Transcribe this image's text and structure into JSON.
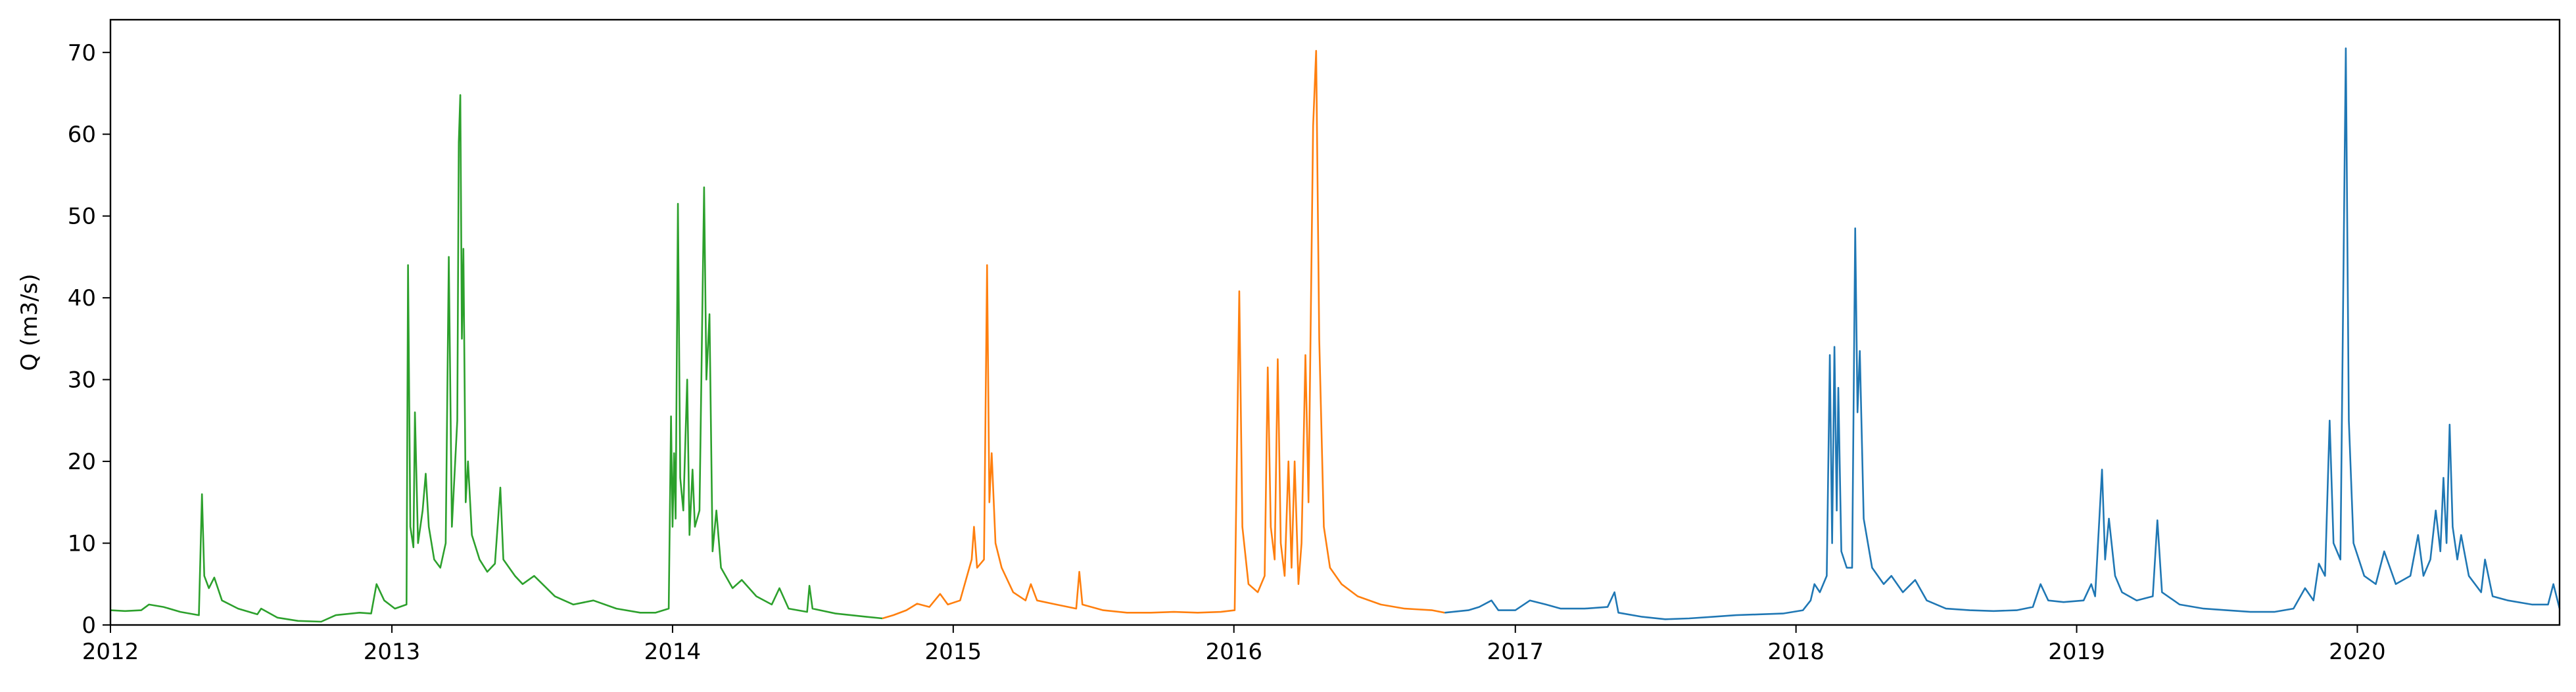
{
  "chart_data": {
    "type": "line",
    "title": "",
    "xlabel": "",
    "ylabel": "Q (m3/s)",
    "xlim": [
      "2012-01-01",
      "2020-09-20"
    ],
    "ylim": [
      0,
      74
    ],
    "x_ticks": [
      "2012",
      "2013",
      "2014",
      "2015",
      "2016",
      "2017",
      "2018",
      "2019",
      "2020"
    ],
    "y_ticks": [
      0,
      10,
      20,
      30,
      40,
      50,
      60,
      70
    ],
    "grid": false,
    "legend": "none",
    "series": [
      {
        "color": "#2ca02c",
        "points": [
          [
            "2012-01-01",
            1.8
          ],
          [
            "2012-01-20",
            1.7
          ],
          [
            "2012-02-10",
            1.8
          ],
          [
            "2012-02-20",
            2.5
          ],
          [
            "2012-03-10",
            2.2
          ],
          [
            "2012-04-01",
            1.6
          ],
          [
            "2012-04-25",
            1.2
          ],
          [
            "2012-04-29",
            16.0
          ],
          [
            "2012-05-02",
            6.0
          ],
          [
            "2012-05-08",
            4.5
          ],
          [
            "2012-05-15",
            5.8
          ],
          [
            "2012-05-25",
            3.0
          ],
          [
            "2012-06-15",
            2.0
          ],
          [
            "2012-07-10",
            1.3
          ],
          [
            "2012-07-15",
            2.0
          ],
          [
            "2012-08-05",
            0.9
          ],
          [
            "2012-09-01",
            0.5
          ],
          [
            "2012-10-01",
            0.4
          ],
          [
            "2012-10-20",
            1.2
          ],
          [
            "2012-11-20",
            1.5
          ],
          [
            "2012-12-05",
            1.4
          ],
          [
            "2012-12-12",
            5.0
          ],
          [
            "2012-12-22",
            3.0
          ],
          [
            "2013-01-05",
            2.0
          ],
          [
            "2013-01-20",
            2.5
          ],
          [
            "2013-01-22",
            44.0
          ],
          [
            "2013-01-25",
            12.0
          ],
          [
            "2013-01-29",
            9.5
          ],
          [
            "2013-01-31",
            26.0
          ],
          [
            "2013-02-04",
            10.0
          ],
          [
            "2013-02-10",
            14.0
          ],
          [
            "2013-02-14",
            18.5
          ],
          [
            "2013-02-18",
            12.0
          ],
          [
            "2013-02-25",
            8.0
          ],
          [
            "2013-03-05",
            7.0
          ],
          [
            "2013-03-12",
            10.0
          ],
          [
            "2013-03-16",
            45.0
          ],
          [
            "2013-03-20",
            12.0
          ],
          [
            "2013-03-27",
            25.0
          ],
          [
            "2013-03-29",
            59.0
          ],
          [
            "2013-03-31",
            64.8
          ],
          [
            "2013-04-02",
            35.0
          ],
          [
            "2013-04-04",
            46.0
          ],
          [
            "2013-04-07",
            15.0
          ],
          [
            "2013-04-10",
            20.0
          ],
          [
            "2013-04-15",
            11.0
          ],
          [
            "2013-04-25",
            8.0
          ],
          [
            "2013-05-05",
            6.5
          ],
          [
            "2013-05-15",
            7.5
          ],
          [
            "2013-05-22",
            16.8
          ],
          [
            "2013-05-26",
            8.0
          ],
          [
            "2013-06-10",
            6.0
          ],
          [
            "2013-06-20",
            5.0
          ],
          [
            "2013-07-05",
            6.0
          ],
          [
            "2013-08-01",
            3.5
          ],
          [
            "2013-08-25",
            2.5
          ],
          [
            "2013-09-20",
            3.0
          ],
          [
            "2013-10-20",
            2.0
          ],
          [
            "2013-11-20",
            1.5
          ],
          [
            "2013-12-10",
            1.5
          ],
          [
            "2013-12-27",
            2.0
          ],
          [
            "2013-12-30",
            25.5
          ],
          [
            "2014-01-01",
            12.0
          ],
          [
            "2014-01-03",
            21.0
          ],
          [
            "2014-01-05",
            13.0
          ],
          [
            "2014-01-08",
            51.5
          ],
          [
            "2014-01-11",
            18.0
          ],
          [
            "2014-01-15",
            14.0
          ],
          [
            "2014-01-20",
            30.0
          ],
          [
            "2014-01-23",
            11.0
          ],
          [
            "2014-01-27",
            19.0
          ],
          [
            "2014-01-30",
            12.0
          ],
          [
            "2014-02-05",
            14.0
          ],
          [
            "2014-02-11",
            53.5
          ],
          [
            "2014-02-14",
            30.0
          ],
          [
            "2014-02-18",
            38.0
          ],
          [
            "2014-02-22",
            9.0
          ],
          [
            "2014-02-27",
            14.0
          ],
          [
            "2014-03-05",
            7.0
          ],
          [
            "2014-03-20",
            4.5
          ],
          [
            "2014-04-01",
            5.5
          ],
          [
            "2014-04-20",
            3.5
          ],
          [
            "2014-05-10",
            2.5
          ],
          [
            "2014-05-20",
            4.5
          ],
          [
            "2014-06-01",
            2.0
          ],
          [
            "2014-06-25",
            1.6
          ],
          [
            "2014-06-28",
            4.8
          ],
          [
            "2014-07-02",
            2.0
          ],
          [
            "2014-08-01",
            1.4
          ],
          [
            "2014-09-10",
            1.0
          ],
          [
            "2014-10-01",
            0.8
          ]
        ]
      },
      {
        "color": "#ff7f0e",
        "points": [
          [
            "2014-10-01",
            0.8
          ],
          [
            "2014-10-15",
            1.2
          ],
          [
            "2014-11-01",
            1.8
          ],
          [
            "2014-11-15",
            2.6
          ],
          [
            "2014-12-01",
            2.2
          ],
          [
            "2014-12-15",
            3.8
          ],
          [
            "2014-12-25",
            2.5
          ],
          [
            "2015-01-10",
            3.0
          ],
          [
            "2015-01-25",
            8.0
          ],
          [
            "2015-01-28",
            12.0
          ],
          [
            "2015-02-01",
            7.0
          ],
          [
            "2015-02-10",
            8.0
          ],
          [
            "2015-02-14",
            44.0
          ],
          [
            "2015-02-17",
            15.0
          ],
          [
            "2015-02-20",
            21.0
          ],
          [
            "2015-02-25",
            10.0
          ],
          [
            "2015-03-05",
            7.0
          ],
          [
            "2015-03-20",
            4.0
          ],
          [
            "2015-04-05",
            3.0
          ],
          [
            "2015-04-12",
            5.0
          ],
          [
            "2015-04-20",
            3.0
          ],
          [
            "2015-05-15",
            2.5
          ],
          [
            "2015-06-10",
            2.0
          ],
          [
            "2015-06-14",
            6.5
          ],
          [
            "2015-06-18",
            2.5
          ],
          [
            "2015-07-15",
            1.8
          ],
          [
            "2015-08-15",
            1.5
          ],
          [
            "2015-09-15",
            1.5
          ],
          [
            "2015-10-15",
            1.6
          ],
          [
            "2015-11-15",
            1.5
          ],
          [
            "2015-12-15",
            1.6
          ],
          [
            "2016-01-02",
            1.8
          ],
          [
            "2016-01-08",
            40.8
          ],
          [
            "2016-01-12",
            12.0
          ],
          [
            "2016-01-20",
            5.0
          ],
          [
            "2016-02-01",
            4.0
          ],
          [
            "2016-02-10",
            6.0
          ],
          [
            "2016-02-14",
            31.5
          ],
          [
            "2016-02-18",
            12.0
          ],
          [
            "2016-02-23",
            8.0
          ],
          [
            "2016-02-27",
            32.5
          ],
          [
            "2016-03-02",
            10.0
          ],
          [
            "2016-03-07",
            6.0
          ],
          [
            "2016-03-12",
            20.0
          ],
          [
            "2016-03-16",
            7.0
          ],
          [
            "2016-03-20",
            20.0
          ],
          [
            "2016-03-25",
            5.0
          ],
          [
            "2016-03-29",
            10.0
          ],
          [
            "2016-04-03",
            33.0
          ],
          [
            "2016-04-07",
            15.0
          ],
          [
            "2016-04-13",
            61.0
          ],
          [
            "2016-04-17",
            70.2
          ],
          [
            "2016-04-21",
            35.0
          ],
          [
            "2016-04-27",
            12.0
          ],
          [
            "2016-05-05",
            7.0
          ],
          [
            "2016-05-20",
            5.0
          ],
          [
            "2016-06-10",
            3.5
          ],
          [
            "2016-07-10",
            2.5
          ],
          [
            "2016-08-10",
            2.0
          ],
          [
            "2016-09-15",
            1.8
          ],
          [
            "2016-10-01",
            1.5
          ]
        ]
      },
      {
        "color": "#1f77b4",
        "points": [
          [
            "2016-10-01",
            1.5
          ],
          [
            "2016-11-01",
            1.8
          ],
          [
            "2016-11-15",
            2.2
          ],
          [
            "2016-12-01",
            3.0
          ],
          [
            "2016-12-10",
            1.8
          ],
          [
            "2017-01-01",
            1.8
          ],
          [
            "2017-01-20",
            3.0
          ],
          [
            "2017-02-10",
            2.5
          ],
          [
            "2017-03-01",
            2.0
          ],
          [
            "2017-04-01",
            2.0
          ],
          [
            "2017-05-01",
            2.2
          ],
          [
            "2017-05-10",
            4.0
          ],
          [
            "2017-05-15",
            1.5
          ],
          [
            "2017-06-15",
            1.0
          ],
          [
            "2017-07-15",
            0.7
          ],
          [
            "2017-08-15",
            0.8
          ],
          [
            "2017-09-15",
            1.0
          ],
          [
            "2017-10-15",
            1.2
          ],
          [
            "2017-11-15",
            1.3
          ],
          [
            "2017-12-15",
            1.4
          ],
          [
            "2018-01-10",
            1.8
          ],
          [
            "2018-01-20",
            3.0
          ],
          [
            "2018-01-25",
            5.0
          ],
          [
            "2018-02-01",
            4.0
          ],
          [
            "2018-02-10",
            6.0
          ],
          [
            "2018-02-14",
            33.0
          ],
          [
            "2018-02-17",
            10.0
          ],
          [
            "2018-02-20",
            34.0
          ],
          [
            "2018-02-23",
            14.0
          ],
          [
            "2018-02-25",
            29.0
          ],
          [
            "2018-03-01",
            9.0
          ],
          [
            "2018-03-08",
            7.0
          ],
          [
            "2018-03-15",
            7.0
          ],
          [
            "2018-03-19",
            48.5
          ],
          [
            "2018-03-22",
            26.0
          ],
          [
            "2018-03-25",
            33.5
          ],
          [
            "2018-03-30",
            13.0
          ],
          [
            "2018-04-10",
            7.0
          ],
          [
            "2018-04-25",
            5.0
          ],
          [
            "2018-05-05",
            6.0
          ],
          [
            "2018-05-20",
            4.0
          ],
          [
            "2018-06-05",
            5.5
          ],
          [
            "2018-06-20",
            3.0
          ],
          [
            "2018-07-15",
            2.0
          ],
          [
            "2018-08-15",
            1.8
          ],
          [
            "2018-09-15",
            1.7
          ],
          [
            "2018-10-15",
            1.8
          ],
          [
            "2018-11-05",
            2.2
          ],
          [
            "2018-11-15",
            5.0
          ],
          [
            "2018-11-25",
            3.0
          ],
          [
            "2018-12-15",
            2.8
          ],
          [
            "2019-01-10",
            3.0
          ],
          [
            "2019-01-20",
            5.0
          ],
          [
            "2019-01-25",
            3.5
          ],
          [
            "2019-02-03",
            19.0
          ],
          [
            "2019-02-07",
            8.0
          ],
          [
            "2019-02-12",
            13.0
          ],
          [
            "2019-02-20",
            6.0
          ],
          [
            "2019-03-01",
            4.0
          ],
          [
            "2019-03-20",
            3.0
          ],
          [
            "2019-04-10",
            3.5
          ],
          [
            "2019-04-16",
            12.8
          ],
          [
            "2019-04-22",
            4.0
          ],
          [
            "2019-05-15",
            2.5
          ],
          [
            "2019-06-15",
            2.0
          ],
          [
            "2019-07-15",
            1.8
          ],
          [
            "2019-08-15",
            1.6
          ],
          [
            "2019-09-15",
            1.6
          ],
          [
            "2019-10-10",
            2.0
          ],
          [
            "2019-10-25",
            4.5
          ],
          [
            "2019-11-05",
            3.0
          ],
          [
            "2019-11-12",
            7.5
          ],
          [
            "2019-11-20",
            6.0
          ],
          [
            "2019-11-26",
            25.0
          ],
          [
            "2019-12-01",
            10.0
          ],
          [
            "2019-12-10",
            8.0
          ],
          [
            "2019-12-17",
            70.5
          ],
          [
            "2019-12-21",
            25.0
          ],
          [
            "2019-12-27",
            10.0
          ],
          [
            "2020-01-10",
            6.0
          ],
          [
            "2020-01-25",
            5.0
          ],
          [
            "2020-02-05",
            9.0
          ],
          [
            "2020-02-20",
            5.0
          ],
          [
            "2020-03-10",
            6.0
          ],
          [
            "2020-03-20",
            11.0
          ],
          [
            "2020-03-27",
            6.0
          ],
          [
            "2020-04-05",
            8.0
          ],
          [
            "2020-04-12",
            14.0
          ],
          [
            "2020-04-18",
            9.0
          ],
          [
            "2020-04-22",
            18.0
          ],
          [
            "2020-04-26",
            10.0
          ],
          [
            "2020-04-30",
            24.5
          ],
          [
            "2020-05-04",
            12.0
          ],
          [
            "2020-05-10",
            8.0
          ],
          [
            "2020-05-15",
            11.0
          ],
          [
            "2020-05-25",
            6.0
          ],
          [
            "2020-06-10",
            4.0
          ],
          [
            "2020-06-15",
            8.0
          ],
          [
            "2020-06-25",
            3.5
          ],
          [
            "2020-07-15",
            3.0
          ],
          [
            "2020-08-15",
            2.5
          ],
          [
            "2020-09-05",
            2.5
          ],
          [
            "2020-09-12",
            5.0
          ],
          [
            "2020-09-20",
            2.0
          ]
        ]
      }
    ]
  }
}
